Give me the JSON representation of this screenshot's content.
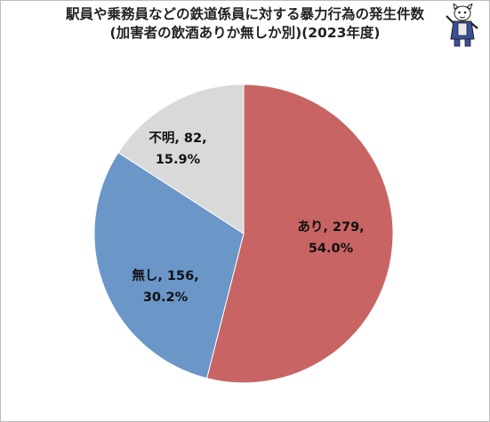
{
  "chart_data": {
    "type": "pie",
    "title": "駅員や乗務員などの鉄道係員に対する暴力行為の発生件数",
    "subtitle": "(加害者の飲酒ありか無しか別)(2023年度)",
    "slices": [
      {
        "label": "あり",
        "value": 279,
        "percent": "54.0%",
        "value_text": "279",
        "color": "#c96464"
      },
      {
        "label": "無し",
        "value": 156,
        "percent": "30.2%",
        "value_text": "156",
        "color": "#6a96c8"
      },
      {
        "label": "不明",
        "value": 82,
        "percent": "15.9%",
        "value_text": "82",
        "color": "#d9d9d9"
      }
    ],
    "start_angle_deg": 0,
    "direction": "clockwise",
    "legend": "none",
    "edge_color": "#ffffff"
  },
  "mascot": {
    "icon": "cartoon-mascot-icon",
    "color": "#3a4f9a"
  }
}
